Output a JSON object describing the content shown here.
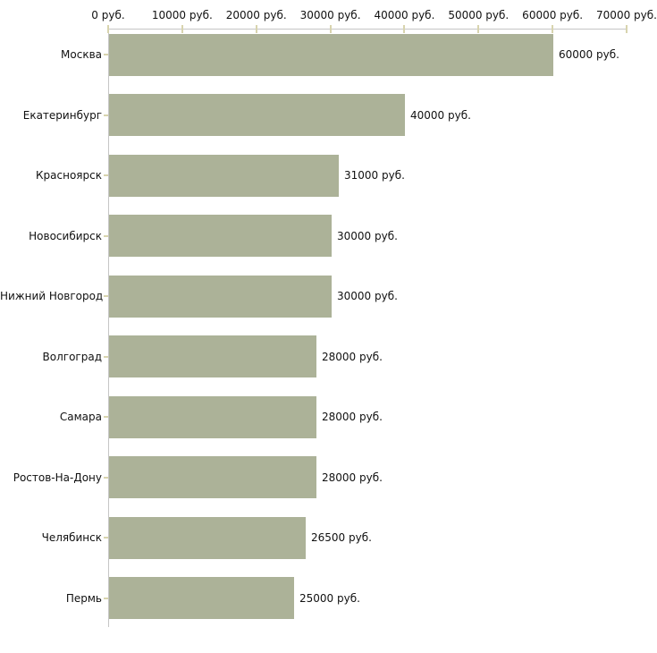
{
  "chart_data": {
    "type": "bar",
    "orientation": "horizontal",
    "title": "",
    "xlabel": "",
    "ylabel": "",
    "unit": "руб.",
    "categories": [
      "Москва",
      "Екатеринбург",
      "Красноярск",
      "Новосибирск",
      "Нижний Новгород",
      "Волгоград",
      "Самара",
      "Ростов-На-Дону",
      "Челябинск",
      "Пермь"
    ],
    "values": [
      60000,
      40000,
      31000,
      30000,
      30000,
      28000,
      28000,
      28000,
      26500,
      25000
    ],
    "value_labels": [
      "60000 руб.",
      "40000 руб.",
      "31000 руб.",
      "30000 руб.",
      "30000 руб.",
      "28000 руб.",
      "28000 руб.",
      "28000 руб.",
      "26500 руб.",
      "25000 руб."
    ],
    "x_ticks": [
      0,
      10000,
      20000,
      30000,
      40000,
      50000,
      60000,
      70000
    ],
    "x_tick_labels": [
      "0 руб.",
      "10000 руб.",
      "20000 руб.",
      "30000 руб.",
      "40000 руб.",
      "50000 руб.",
      "60000 руб.",
      "70000 руб."
    ],
    "xlim": [
      0,
      70000
    ],
    "grid": false,
    "legend": null,
    "colors": {
      "bar": "#acb298",
      "axis_line": "#c6c6c6",
      "tick_mark": "#d8d4ae",
      "text": "#111111",
      "background": "#ffffff"
    }
  }
}
